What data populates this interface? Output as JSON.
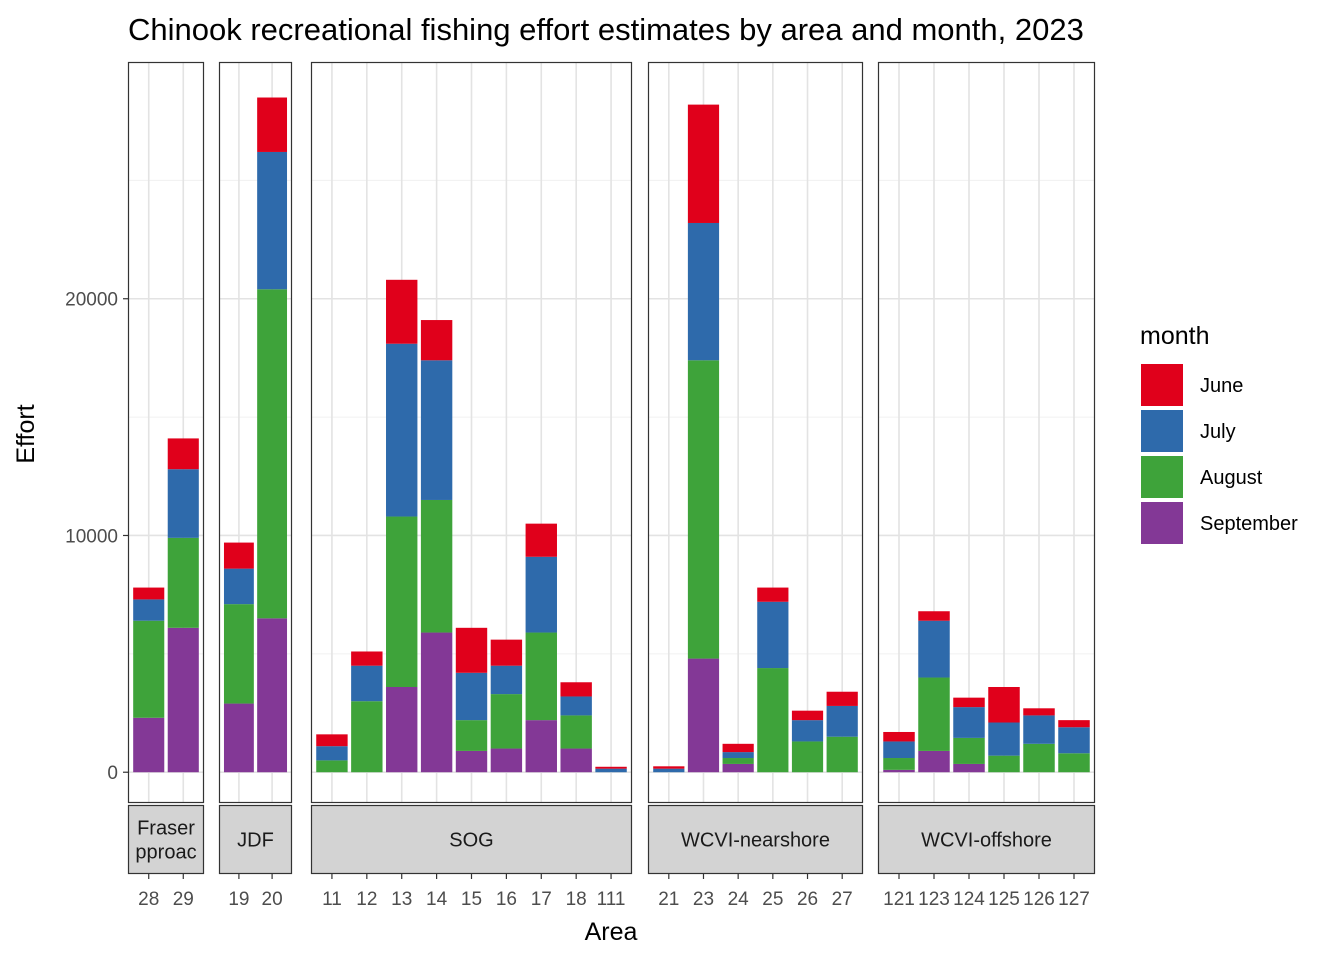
{
  "chart_data": {
    "type": "bar",
    "stacked": true,
    "faceted": true,
    "title": "Chinook recreational fishing effort estimates by area and month, 2023",
    "xlabel": "Area",
    "ylabel": "Effort",
    "ylim": [
      -1300,
      30000
    ],
    "yticks": [
      0,
      10000,
      20000
    ],
    "ytick_labels": [
      "0",
      "10000",
      "20000"
    ],
    "grid": true,
    "legend": {
      "title": "month",
      "position": "right",
      "entries": [
        {
          "name": "June",
          "color": "#e0001b"
        },
        {
          "name": "July",
          "color": "#2e6aab"
        },
        {
          "name": "August",
          "color": "#3ea33a"
        },
        {
          "name": "September",
          "color": "#833896"
        }
      ]
    },
    "stack_order_bottom_to_top": [
      "September",
      "August",
      "July",
      "June"
    ],
    "facets": [
      {
        "name": "Fraser",
        "label_lines": [
          "Fraser",
          "pproac"
        ],
        "areas": [
          {
            "area": "28",
            "June": 500,
            "July": 900,
            "August": 4100,
            "September": 2300
          },
          {
            "area": "29",
            "June": 1300,
            "July": 2900,
            "August": 3800,
            "September": 6100
          }
        ]
      },
      {
        "name": "JDF",
        "label_lines": [
          "JDF"
        ],
        "areas": [
          {
            "area": "19",
            "June": 1100,
            "July": 1500,
            "August": 4200,
            "September": 2900
          },
          {
            "area": "20",
            "June": 2300,
            "July": 5800,
            "August": 13900,
            "September": 6500
          }
        ]
      },
      {
        "name": "SOG",
        "label_lines": [
          "SOG"
        ],
        "areas": [
          {
            "area": "11",
            "June": 500,
            "July": 600,
            "August": 500,
            "September": 0
          },
          {
            "area": "12",
            "June": 600,
            "July": 1500,
            "August": 3000,
            "September": 0
          },
          {
            "area": "13",
            "June": 2700,
            "July": 7300,
            "August": 7200,
            "September": 3600
          },
          {
            "area": "14",
            "June": 1700,
            "July": 5900,
            "August": 5600,
            "September": 5900
          },
          {
            "area": "15",
            "June": 1900,
            "July": 2000,
            "August": 1300,
            "September": 900
          },
          {
            "area": "16",
            "June": 1100,
            "July": 1200,
            "August": 2300,
            "September": 1000
          },
          {
            "area": "17",
            "June": 1400,
            "July": 3200,
            "August": 3700,
            "September": 2200
          },
          {
            "area": "18",
            "June": 600,
            "July": 800,
            "August": 1400,
            "September": 1000
          },
          {
            "area": "111",
            "June": 80,
            "July": 150,
            "August": 0,
            "September": 0
          }
        ]
      },
      {
        "name": "WCVI-nearshore",
        "label_lines": [
          "WCVI-nearshore"
        ],
        "areas": [
          {
            "area": "21",
            "June": 100,
            "July": 150,
            "August": 0,
            "September": 0
          },
          {
            "area": "23",
            "June": 5000,
            "July": 5800,
            "August": 12600,
            "September": 4800
          },
          {
            "area": "24",
            "June": 350,
            "July": 250,
            "August": 250,
            "September": 350
          },
          {
            "area": "25",
            "June": 600,
            "July": 2800,
            "August": 4400,
            "September": 0
          },
          {
            "area": "26",
            "June": 400,
            "July": 900,
            "August": 1300,
            "September": 0
          },
          {
            "area": "27",
            "June": 600,
            "July": 1300,
            "August": 1500,
            "September": 0
          }
        ]
      },
      {
        "name": "WCVI-offshore",
        "label_lines": [
          "WCVI-offshore"
        ],
        "areas": [
          {
            "area": "121",
            "June": 400,
            "July": 700,
            "August": 500,
            "September": 100
          },
          {
            "area": "123",
            "June": 400,
            "July": 2400,
            "August": 3100,
            "September": 900
          },
          {
            "area": "124",
            "June": 400,
            "July": 1300,
            "August": 1100,
            "September": 350
          },
          {
            "area": "125",
            "June": 1500,
            "July": 1400,
            "August": 700,
            "September": 0
          },
          {
            "area": "126",
            "June": 300,
            "July": 1200,
            "August": 1200,
            "September": 0
          },
          {
            "area": "127",
            "June": 300,
            "July": 1100,
            "August": 800,
            "September": 0
          }
        ]
      }
    ]
  }
}
